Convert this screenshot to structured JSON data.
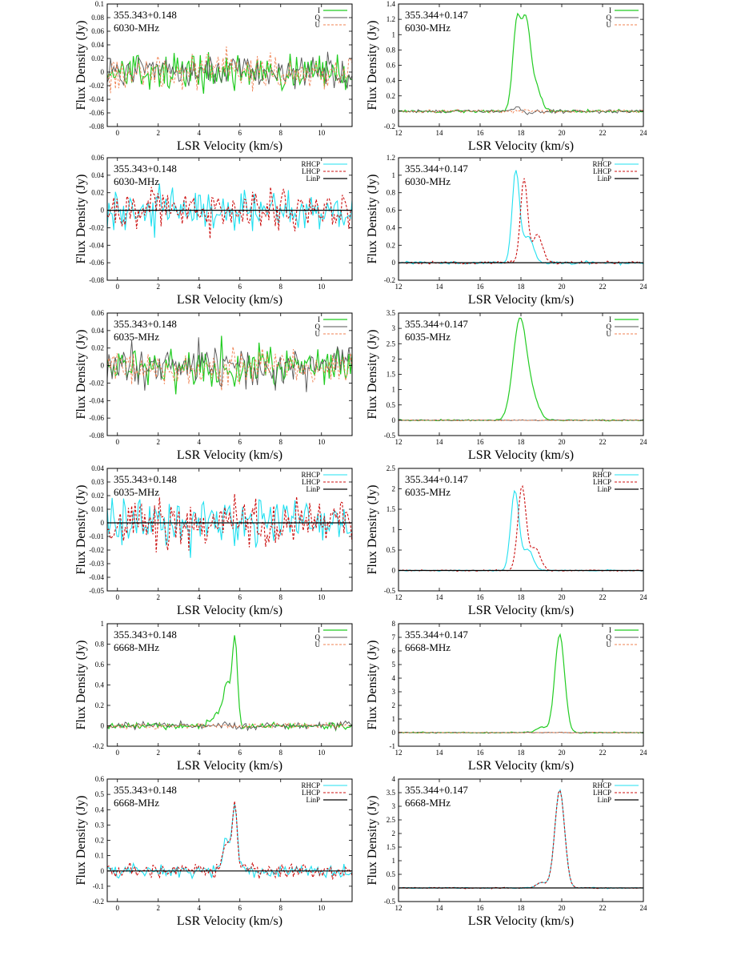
{
  "figure": {
    "xlabel": "LSR Velocity (km/s)",
    "ylabel": "Flux Density (Jy)"
  },
  "colors": {
    "I": "#22cc22",
    "Q": "#555555",
    "U": "#f08050",
    "RHCP": "#22e0f0",
    "LHCP": "#cc1111",
    "LinP": "#000000"
  },
  "chart_data": [
    {
      "type": "line",
      "source": "355.343+0.148",
      "freq": "6030-MHz",
      "kind": "stokes",
      "xlim": [
        -0.5,
        11.5
      ],
      "ylim": [
        -0.08,
        0.1
      ],
      "xticks": [
        0,
        2,
        4,
        6,
        8,
        10
      ],
      "yticks": [
        -0.08,
        -0.06,
        -0.04,
        -0.02,
        0,
        0.02,
        0.04,
        0.06,
        0.08,
        0.1
      ],
      "yticklabels": [
        "-0.08",
        "-0.06",
        "-0.04",
        "-0.02",
        "0",
        "0.02",
        "0.04",
        "0.06",
        "0.08",
        "0.1"
      ],
      "noise": [
        0.025,
        0.022,
        0.025
      ],
      "features": [],
      "series": [
        {
          "name": "I"
        },
        {
          "name": "Q"
        },
        {
          "name": "U"
        }
      ]
    },
    {
      "type": "line",
      "source": "355.344+0.147",
      "freq": "6030-MHz",
      "kind": "stokes",
      "xlim": [
        12,
        24
      ],
      "ylim": [
        -0.2,
        1.4
      ],
      "xticks": [
        12,
        14,
        16,
        18,
        20,
        22,
        24
      ],
      "yticks": [
        -0.2,
        0,
        0.2,
        0.4,
        0.6,
        0.8,
        1,
        1.2,
        1.4
      ],
      "yticklabels": [
        "-0.2",
        "0",
        "0.2",
        "0.4",
        "0.6",
        "0.8",
        "1",
        "1.2",
        "1.4"
      ],
      "noise": [
        0.02,
        0.02,
        0.02
      ],
      "features": [
        {
          "s": 0,
          "x": 17.8,
          "a": 1.15,
          "w": 0.2
        },
        {
          "s": 0,
          "x": 18.25,
          "a": 1.1,
          "w": 0.2
        },
        {
          "s": 0,
          "x": 18.7,
          "a": 0.35,
          "w": 0.25
        },
        {
          "s": 1,
          "x": 17.8,
          "a": 0.05,
          "w": 0.25
        },
        {
          "s": 1,
          "x": 18.3,
          "a": -0.04,
          "w": 0.2
        }
      ],
      "series": [
        {
          "name": "I"
        },
        {
          "name": "Q"
        },
        {
          "name": "U"
        }
      ]
    },
    {
      "type": "line",
      "source": "355.343+0.148",
      "freq": "6030-MHz",
      "kind": "circular",
      "xlim": [
        -0.5,
        11.5
      ],
      "ylim": [
        -0.08,
        0.06
      ],
      "xticks": [
        0,
        2,
        4,
        6,
        8,
        10
      ],
      "yticks": [
        -0.08,
        -0.06,
        -0.04,
        -0.02,
        0,
        0.02,
        0.04,
        0.06
      ],
      "yticklabels": [
        "-0.08",
        "-0.06",
        "-0.04",
        "-0.02",
        "0",
        "0.02",
        "0.04",
        "0.06"
      ],
      "noise": [
        0.022,
        0.022,
        0
      ],
      "features": [],
      "series": [
        {
          "name": "RHCP"
        },
        {
          "name": "LHCP"
        },
        {
          "name": "LinP"
        }
      ]
    },
    {
      "type": "line",
      "source": "355.344+0.147",
      "freq": "6030-MHz",
      "kind": "circular",
      "xlim": [
        12,
        24
      ],
      "ylim": [
        -0.2,
        1.2
      ],
      "xticks": [
        12,
        14,
        16,
        18,
        20,
        22,
        24
      ],
      "yticks": [
        -0.2,
        0,
        0.2,
        0.4,
        0.6,
        0.8,
        1,
        1.2
      ],
      "yticklabels": [
        "-0.2",
        "0",
        "0.2",
        "0.4",
        "0.6",
        "0.8",
        "1",
        "1.2"
      ],
      "noise": [
        0.015,
        0.015,
        0
      ],
      "features": [
        {
          "s": 0,
          "x": 17.75,
          "a": 1.05,
          "w": 0.18
        },
        {
          "s": 0,
          "x": 18.35,
          "a": 0.3,
          "w": 0.25
        },
        {
          "s": 1,
          "x": 18.15,
          "a": 0.95,
          "w": 0.17
        },
        {
          "s": 1,
          "x": 18.8,
          "a": 0.32,
          "w": 0.25
        }
      ],
      "series": [
        {
          "name": "RHCP"
        },
        {
          "name": "LHCP"
        },
        {
          "name": "LinP"
        }
      ]
    },
    {
      "type": "line",
      "source": "355.343+0.148",
      "freq": "6035-MHz",
      "kind": "stokes",
      "xlim": [
        -0.5,
        11.5
      ],
      "ylim": [
        -0.08,
        0.06
      ],
      "xticks": [
        0,
        2,
        4,
        6,
        8,
        10
      ],
      "yticks": [
        -0.08,
        -0.06,
        -0.04,
        -0.02,
        0,
        0.02,
        0.04,
        0.06
      ],
      "yticklabels": [
        "-0.08",
        "-0.06",
        "-0.04",
        "-0.02",
        "0",
        "0.02",
        "0.04",
        "0.06"
      ],
      "noise": [
        0.024,
        0.022,
        0.02
      ],
      "features": [],
      "series": [
        {
          "name": "I"
        },
        {
          "name": "Q"
        },
        {
          "name": "U"
        }
      ]
    },
    {
      "type": "line",
      "source": "355.344+0.147",
      "freq": "6035-MHz",
      "kind": "stokes",
      "xlim": [
        12,
        24
      ],
      "ylim": [
        -0.5,
        3.5
      ],
      "xticks": [
        12,
        14,
        16,
        18,
        20,
        22,
        24
      ],
      "yticks": [
        -0.5,
        0,
        0.5,
        1,
        1.5,
        2,
        2.5,
        3,
        3.5
      ],
      "yticklabels": [
        "-0.5",
        "0",
        "0.5",
        "1",
        "1.5",
        "2",
        "2.5",
        "3",
        "3.5"
      ],
      "noise": [
        0.02,
        0.015,
        0.015
      ],
      "features": [
        {
          "s": 0,
          "x": 17.95,
          "a": 3.3,
          "w": 0.33
        },
        {
          "s": 0,
          "x": 18.6,
          "a": 0.6,
          "w": 0.3
        }
      ],
      "series": [
        {
          "name": "I"
        },
        {
          "name": "Q"
        },
        {
          "name": "U"
        }
      ]
    },
    {
      "type": "line",
      "source": "355.343+0.148",
      "freq": "6035-MHz",
      "kind": "circular",
      "xlim": [
        -0.5,
        11.5
      ],
      "ylim": [
        -0.05,
        0.04
      ],
      "xticks": [
        0,
        2,
        4,
        6,
        8,
        10
      ],
      "yticks": [
        -0.05,
        -0.04,
        -0.03,
        -0.02,
        -0.01,
        0,
        0.01,
        0.02,
        0.03,
        0.04
      ],
      "yticklabels": [
        "-0.05",
        "-0.04",
        "-0.03",
        "-0.02",
        "-0.01",
        "0",
        "0.01",
        "0.02",
        "0.03",
        "0.04"
      ],
      "noise": [
        0.018,
        0.017,
        0
      ],
      "features": [],
      "series": [
        {
          "name": "RHCP"
        },
        {
          "name": "LHCP"
        },
        {
          "name": "LinP"
        }
      ]
    },
    {
      "type": "line",
      "source": "355.344+0.147",
      "freq": "6035-MHz",
      "kind": "circular",
      "xlim": [
        12,
        24
      ],
      "ylim": [
        -0.5,
        2.5
      ],
      "xticks": [
        12,
        14,
        16,
        18,
        20,
        22,
        24
      ],
      "yticks": [
        -0.5,
        0,
        0.5,
        1,
        1.5,
        2,
        2.5
      ],
      "yticklabels": [
        "-0.5",
        "0",
        "0.5",
        "1",
        "1.5",
        "2",
        "2.5"
      ],
      "noise": [
        0.015,
        0.015,
        0
      ],
      "features": [
        {
          "s": 0,
          "x": 17.7,
          "a": 1.95,
          "w": 0.2
        },
        {
          "s": 0,
          "x": 18.35,
          "a": 0.5,
          "w": 0.25
        },
        {
          "s": 1,
          "x": 18.05,
          "a": 2.05,
          "w": 0.2
        },
        {
          "s": 1,
          "x": 18.7,
          "a": 0.55,
          "w": 0.25
        }
      ],
      "series": [
        {
          "name": "RHCP"
        },
        {
          "name": "LHCP"
        },
        {
          "name": "LinP"
        }
      ]
    },
    {
      "type": "line",
      "source": "355.343+0.148",
      "freq": "6668-MHz",
      "kind": "stokes",
      "xlim": [
        -0.5,
        11.5
      ],
      "ylim": [
        -0.2,
        1
      ],
      "xticks": [
        0,
        2,
        4,
        6,
        8,
        10
      ],
      "yticks": [
        -0.2,
        0,
        0.2,
        0.4,
        0.6,
        0.8,
        1
      ],
      "yticklabels": [
        "-0.2",
        "0",
        "0.2",
        "0.4",
        "0.6",
        "0.8",
        "1"
      ],
      "noise": [
        0.03,
        0.035,
        0.03
      ],
      "features": [
        {
          "s": 0,
          "x": 5.75,
          "a": 0.85,
          "w": 0.13
        },
        {
          "s": 0,
          "x": 5.35,
          "a": 0.4,
          "w": 0.18
        },
        {
          "s": 0,
          "x": 4.8,
          "a": 0.1,
          "w": 0.3
        }
      ],
      "series": [
        {
          "name": "I"
        },
        {
          "name": "Q"
        },
        {
          "name": "U"
        }
      ]
    },
    {
      "type": "line",
      "source": "355.344+0.147",
      "freq": "6668-MHz",
      "kind": "stokes",
      "xlim": [
        12,
        24
      ],
      "ylim": [
        -1,
        8
      ],
      "xticks": [
        12,
        14,
        16,
        18,
        20,
        22,
        24
      ],
      "yticks": [
        -1,
        0,
        1,
        2,
        3,
        4,
        5,
        6,
        7,
        8
      ],
      "yticklabels": [
        "-1",
        "0",
        "1",
        "2",
        "3",
        "4",
        "5",
        "6",
        "7",
        "8"
      ],
      "noise": [
        0.04,
        0.03,
        0.03
      ],
      "features": [
        {
          "s": 0,
          "x": 19.9,
          "a": 7.2,
          "w": 0.24
        },
        {
          "s": 0,
          "x": 19.0,
          "a": 0.4,
          "w": 0.25
        }
      ],
      "series": [
        {
          "name": "I"
        },
        {
          "name": "Q"
        },
        {
          "name": "U"
        }
      ]
    },
    {
      "type": "line",
      "source": "355.343+0.148",
      "freq": "6668-MHz",
      "kind": "circular",
      "xlim": [
        -0.5,
        11.5
      ],
      "ylim": [
        -0.2,
        0.6
      ],
      "xticks": [
        0,
        2,
        4,
        6,
        8,
        10
      ],
      "yticks": [
        -0.2,
        -0.1,
        0,
        0.1,
        0.2,
        0.3,
        0.4,
        0.5,
        0.6
      ],
      "yticklabels": [
        "-0.2",
        "-0.1",
        "0",
        "0.1",
        "0.2",
        "0.3",
        "0.4",
        "0.5",
        "0.6"
      ],
      "noise": [
        0.045,
        0.045,
        0
      ],
      "features": [
        {
          "s": 0,
          "x": 5.75,
          "a": 0.42,
          "w": 0.12
        },
        {
          "s": 0,
          "x": 5.35,
          "a": 0.2,
          "w": 0.18
        },
        {
          "s": 1,
          "x": 5.75,
          "a": 0.42,
          "w": 0.12
        },
        {
          "s": 1,
          "x": 5.35,
          "a": 0.2,
          "w": 0.18
        }
      ],
      "series": [
        {
          "name": "RHCP"
        },
        {
          "name": "LHCP"
        },
        {
          "name": "LinP"
        }
      ]
    },
    {
      "type": "line",
      "source": "355.344+0.147",
      "freq": "6668-MHz",
      "kind": "circular",
      "xlim": [
        12,
        24
      ],
      "ylim": [
        -0.5,
        4
      ],
      "xticks": [
        12,
        14,
        16,
        18,
        20,
        22,
        24
      ],
      "yticks": [
        -0.5,
        0,
        0.5,
        1,
        1.5,
        2,
        2.5,
        3,
        3.5,
        4
      ],
      "yticklabels": [
        "-0.5",
        "0",
        "0.5",
        "1",
        "1.5",
        "2",
        "2.5",
        "3",
        "3.5",
        "4"
      ],
      "noise": [
        0.02,
        0.02,
        0
      ],
      "features": [
        {
          "s": 0,
          "x": 19.9,
          "a": 3.6,
          "w": 0.24
        },
        {
          "s": 0,
          "x": 19.0,
          "a": 0.2,
          "w": 0.25
        },
        {
          "s": 1,
          "x": 19.9,
          "a": 3.6,
          "w": 0.24
        },
        {
          "s": 1,
          "x": 19.0,
          "a": 0.2,
          "w": 0.25
        }
      ],
      "series": [
        {
          "name": "RHCP"
        },
        {
          "name": "LHCP"
        },
        {
          "name": "LinP"
        }
      ]
    }
  ]
}
